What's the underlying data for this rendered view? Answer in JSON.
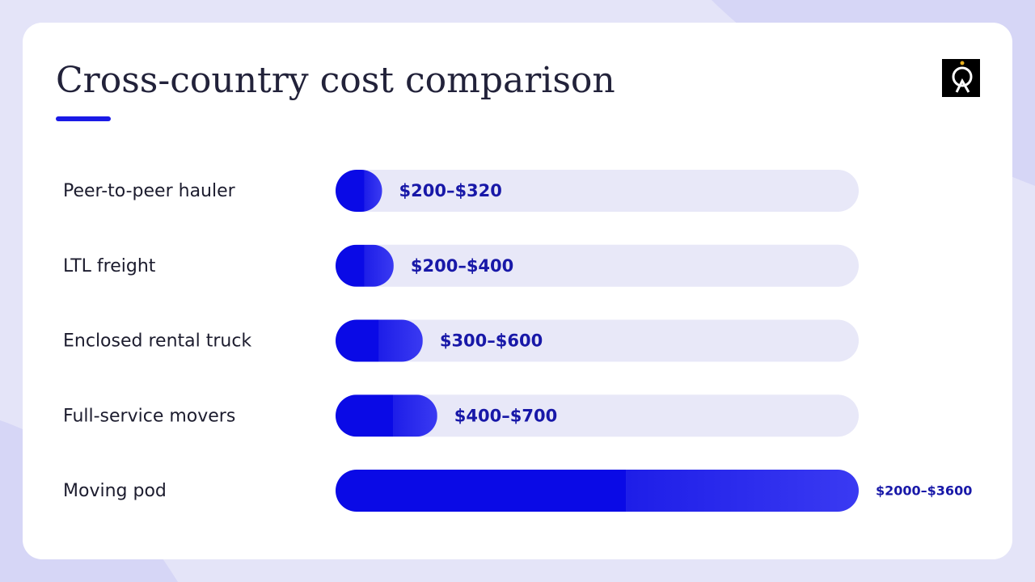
{
  "chart_data": {
    "type": "range-bar",
    "title": "Cross-country cost comparison",
    "categories": [
      "Peer-to-peer hauler",
      "LTL freight",
      "Enclosed rental truck",
      "Full-service movers",
      "Moving pod"
    ],
    "low": [
      200,
      200,
      300,
      400,
      2000
    ],
    "high": [
      320,
      400,
      600,
      700,
      3600
    ],
    "value_labels": [
      "$200–$320",
      "$200–$400",
      "$300–$600",
      "$400–$700",
      "$2000–$3600"
    ],
    "color": "#0a0ae6",
    "xlim": [
      0,
      3600
    ]
  }
}
